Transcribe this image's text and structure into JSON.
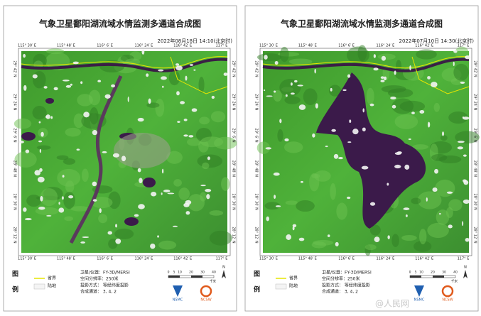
{
  "watermark": "@人民网",
  "top_axis": [
    "115° 30′ E",
    "115° 48′ E",
    "116° 6′ E",
    "116° 24′ E",
    "116° 42′ E",
    "117° E"
  ],
  "side_axis": [
    "29° 42′ N",
    "29° 24′ N",
    "29° 6′ N",
    "28° 48′ N",
    "28° 30′ N",
    "28° 12′ N"
  ],
  "panels": [
    {
      "title": "气象卫星鄱阳湖流域水情监测多通道合成图",
      "time": "2022年08月18日  14:10(北京时)",
      "scene": "drought"
    },
    {
      "title": "气象卫星鄱阳湖流域水情监测多通道合成图",
      "time": "2022年07月10日  14:30(北京时)",
      "scene": "flood"
    }
  ],
  "legend": {
    "heading_1": "图",
    "heading_2": "例",
    "items": [
      "省界",
      "陆地"
    ]
  },
  "info": [
    "卫星/仪器：FY-3D/MERSI",
    "空间分辨率：250米",
    "投影方式：  等经纬度投影",
    "合成通道：  3, 4, 2"
  ],
  "scale": {
    "ticks": [
      "0",
      "5",
      "10",
      "20",
      "30",
      "40"
    ],
    "unit": "千米"
  },
  "north": "N",
  "logos": [
    "NSMC",
    "NCSW"
  ]
}
